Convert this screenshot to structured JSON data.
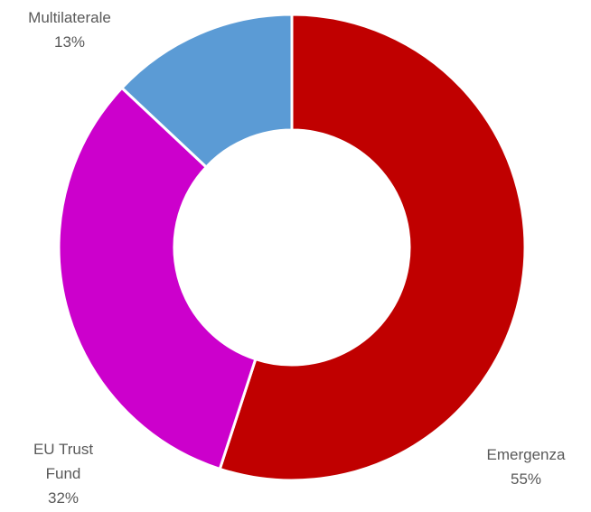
{
  "chart_data": {
    "type": "pie",
    "variant": "donut",
    "title": "",
    "legend": "none",
    "slices": [
      {
        "label_lines": [
          "Emergenza"
        ],
        "percent_text": "55%",
        "value": 55,
        "color": "#c00000"
      },
      {
        "label_lines": [
          "EU Trust",
          "Fund"
        ],
        "percent_text": "32%",
        "value": 32,
        "color": "#cc00cc"
      },
      {
        "label_lines": [
          "Multilaterale"
        ],
        "percent_text": "13%",
        "value": 13,
        "color": "#5b9bd5"
      }
    ]
  }
}
